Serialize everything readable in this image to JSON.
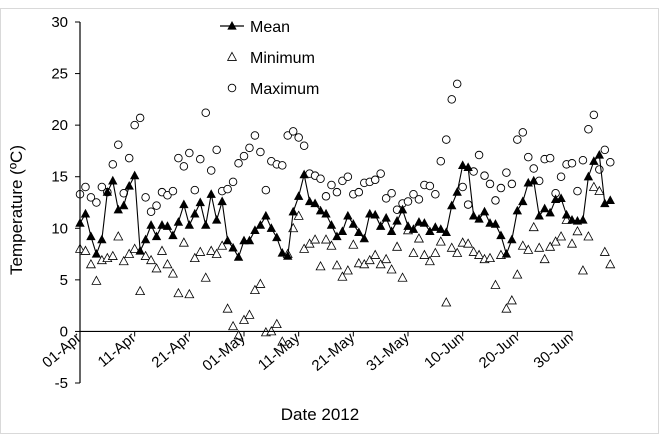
{
  "chart_data": {
    "type": "line",
    "xlabel": "Date 2012",
    "ylabel": "Temperature (ºC)",
    "x_tick_labels": [
      "01-Apr",
      "11-Apr",
      "21-Apr",
      "01-May",
      "11-May",
      "21-May",
      "31-May",
      "10-Jun",
      "20-Jun",
      "30-Jun"
    ],
    "x_tick_days": [
      0,
      10,
      20,
      30,
      40,
      50,
      60,
      70,
      80,
      90
    ],
    "x_range_days": [
      0,
      90
    ],
    "x_start_date": "2012-04-01",
    "ylim": [
      -5,
      30
    ],
    "y_ticks": [
      -5,
      0,
      5,
      10,
      15,
      20,
      25,
      30
    ],
    "grid": false,
    "legend_position": "top-center",
    "series": [
      {
        "name": "Mean",
        "marker": "filled-triangle",
        "line": true,
        "color": "#000000",
        "values": [
          10.5,
          11.4,
          9.2,
          7.5,
          8.9,
          13.5,
          14.6,
          11.8,
          12.2,
          14.1,
          15.1,
          7.8,
          8.9,
          10.3,
          9.2,
          10.3,
          10.2,
          9.3,
          10.6,
          12.3,
          10.3,
          11.4,
          12.5,
          10.3,
          13.3,
          10.8,
          12.6,
          8.8,
          8.1,
          7.2,
          8.8,
          8.8,
          9.8,
          10.3,
          11.2,
          10.0,
          9.1,
          7.6,
          7.3,
          11.6,
          13.1,
          15.2,
          12.6,
          12.4,
          11.7,
          11.4,
          10.3,
          9.2,
          9.7,
          11.2,
          10.4,
          9.6,
          9.0,
          11.4,
          11.3,
          10.2,
          11.0,
          9.7,
          10.7,
          11.8,
          10.2,
          9.9,
          10.6,
          10.5,
          9.7,
          10.1,
          9.9,
          9.6,
          12.2,
          13.5,
          16.1,
          15.9,
          11.2,
          10.9,
          11.6,
          10.5,
          10.4,
          9.3,
          7.5,
          8.9,
          11.7,
          12.6,
          14.4,
          14.6,
          11.2,
          11.9,
          11.5,
          12.8,
          12.9,
          11.3,
          10.8,
          10.7,
          10.8,
          15.0,
          16.5,
          17.1,
          12.4,
          12.7
        ]
      },
      {
        "name": "Minimum",
        "marker": "open-triangle",
        "line": false,
        "color": "#000000",
        "values": [
          8.0,
          7.8,
          6.5,
          4.9,
          6.9,
          7.1,
          7.3,
          9.2,
          6.8,
          7.5,
          8.0,
          3.9,
          7.3,
          6.9,
          6.1,
          7.8,
          6.5,
          5.6,
          3.7,
          8.6,
          3.6,
          7.1,
          7.7,
          5.2,
          7.8,
          7.5,
          8.3,
          2.2,
          0.5,
          -0.4,
          1.1,
          1.6,
          4.0,
          4.6,
          -0.1,
          0.0,
          0.7,
          -1.0,
          7.5,
          10.0,
          11.2,
          8.0,
          8.5,
          8.9,
          6.3,
          8.9,
          8.3,
          6.4,
          5.3,
          5.9,
          8.4,
          6.6,
          6.5,
          6.9,
          7.4,
          6.5,
          7.0,
          6.0,
          8.2,
          5.2,
          9.8,
          7.6,
          9.0,
          7.4,
          6.8,
          7.6,
          8.7,
          2.8,
          8.1,
          7.6,
          8.6,
          8.5,
          7.7,
          7.4,
          7.0,
          7.1,
          4.5,
          7.4,
          2.2,
          3.0,
          5.5,
          8.3,
          7.9,
          10.1,
          8.1,
          7.0,
          8.2,
          8.7,
          9.2,
          10.8,
          8.5,
          9.7,
          5.9,
          9.2,
          14.0,
          13.6,
          7.7,
          6.5
        ]
      },
      {
        "name": "Maximum",
        "marker": "open-circle",
        "line": false,
        "color": "#000000",
        "values": [
          13.3,
          14.0,
          13.0,
          12.5,
          14.0,
          13.5,
          16.2,
          18.1,
          13.4,
          16.8,
          20.0,
          20.7,
          13.0,
          11.6,
          12.2,
          13.5,
          13.2,
          13.6,
          16.8,
          16.0,
          17.3,
          13.7,
          16.7,
          21.2,
          15.6,
          17.6,
          13.6,
          13.8,
          14.5,
          16.3,
          17.0,
          17.8,
          19.0,
          17.4,
          13.7,
          16.5,
          16.2,
          16.1,
          19.0,
          19.4,
          18.8,
          18.0,
          15.3,
          15.1,
          14.8,
          13.1,
          14.2,
          13.5,
          14.6,
          15.0,
          13.3,
          13.5,
          14.4,
          14.5,
          14.7,
          15.3,
          12.9,
          13.4,
          11.8,
          12.4,
          12.6,
          13.3,
          12.8,
          14.2,
          14.1,
          13.3,
          16.5,
          18.6,
          22.5,
          24.0,
          14.0,
          12.3,
          15.5,
          17.1,
          15.1,
          14.3,
          12.7,
          13.9,
          15.4,
          14.3,
          18.6,
          19.3,
          16.9,
          15.8,
          14.6,
          16.7,
          16.8,
          13.4,
          15.0,
          16.2,
          16.3,
          13.6,
          16.6,
          19.6,
          21.0,
          15.7,
          17.6,
          16.4
        ]
      }
    ]
  }
}
